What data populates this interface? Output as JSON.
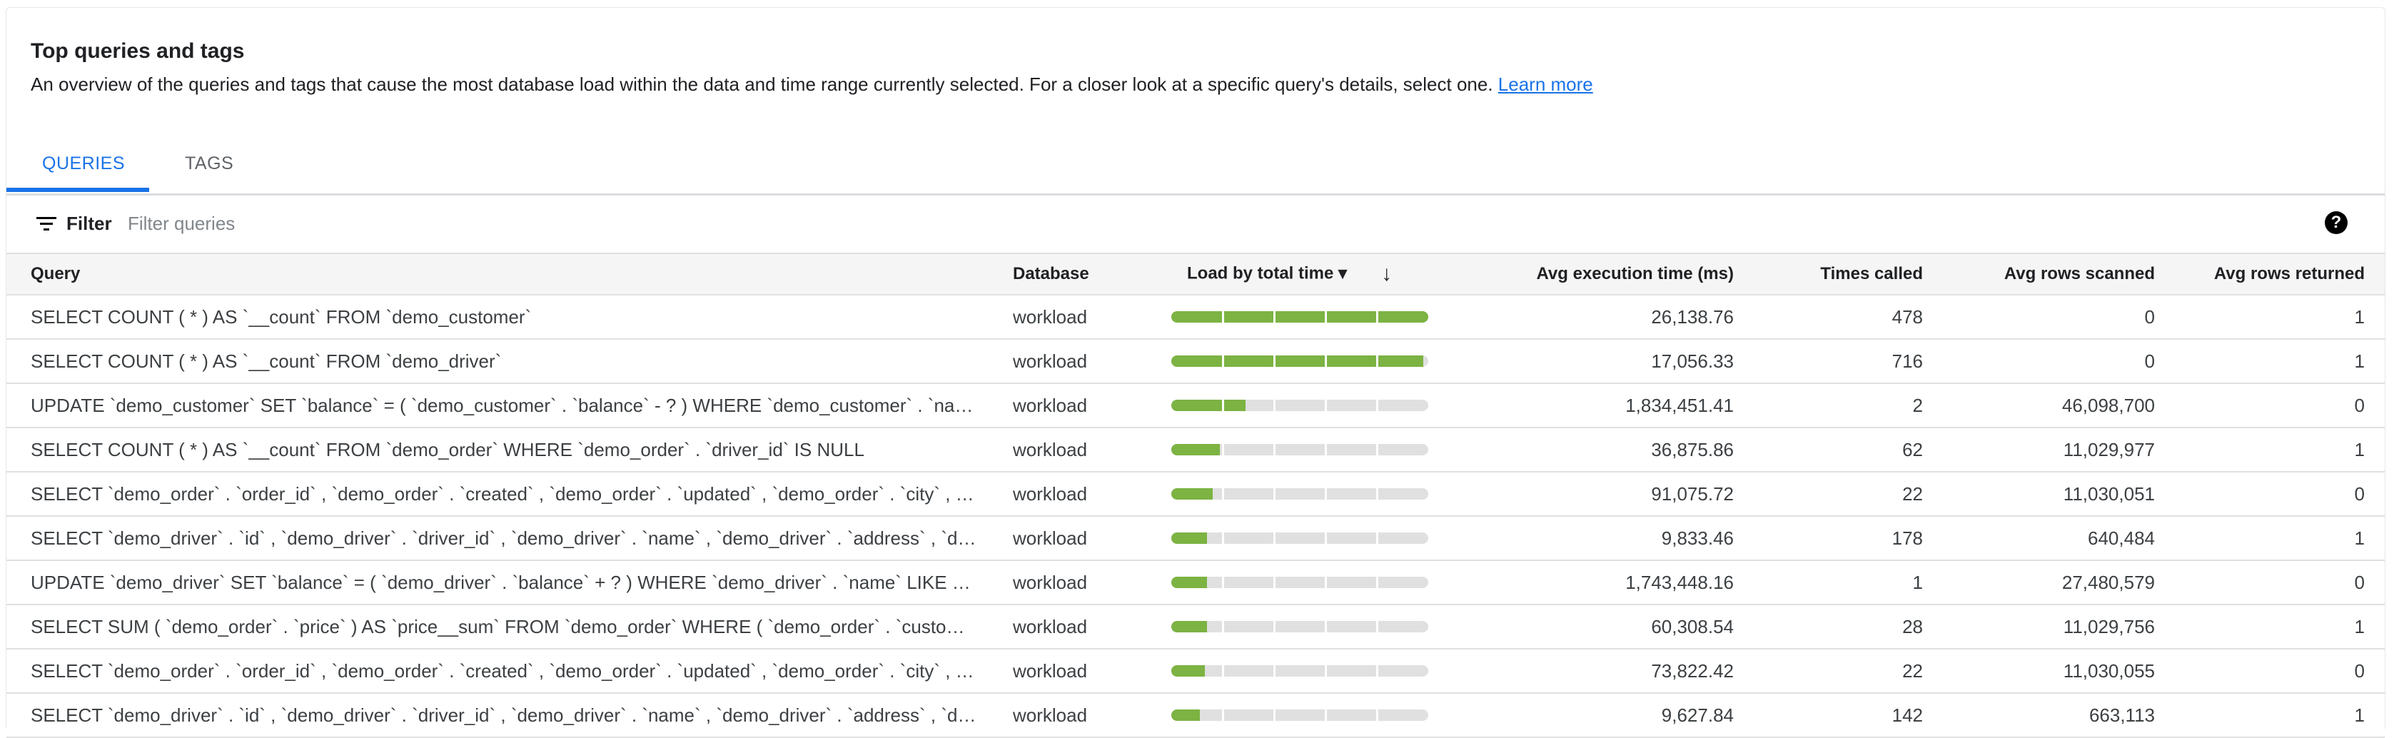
{
  "header": {
    "title": "Top queries and tags",
    "description": "An overview of the queries and tags that cause the most database load within the data and time range currently selected. For a closer look at a specific query's details, select one.",
    "learn_more": "Learn more"
  },
  "tabs": [
    {
      "label": "QUERIES",
      "active": true
    },
    {
      "label": "TAGS",
      "active": false
    }
  ],
  "filter": {
    "label": "Filter",
    "placeholder": "Filter queries",
    "icon": "filter-list-icon",
    "help_icon": "help-icon"
  },
  "colors": {
    "accent": "#1a73e8",
    "bar_fill": "#7cb342",
    "bar_track": "#e0e0e0"
  },
  "table": {
    "columns": [
      "Query",
      "Database",
      "Load by total time ▾",
      "Avg execution time (ms)",
      "Times called",
      "Avg rows scanned",
      "Avg rows returned"
    ],
    "sort": {
      "column": "Load by total time",
      "direction": "descending"
    },
    "rows": [
      {
        "query": "SELECT COUNT ( * ) AS `__count` FROM `demo_customer`",
        "database": "workload",
        "load": 1.0,
        "avg_exec": "26,138.76",
        "times": "478",
        "scanned": "0",
        "returned": "1"
      },
      {
        "query": "SELECT COUNT ( * ) AS `__count` FROM `demo_driver`",
        "database": "workload",
        "load": 0.98,
        "avg_exec": "17,056.33",
        "times": "716",
        "scanned": "0",
        "returned": "1"
      },
      {
        "query": "UPDATE `demo_customer` SET `balance` = ( `demo_customer` . `balance` - ? ) WHERE `demo_customer` . `name` LIKE BINARY ?",
        "database": "workload",
        "load": 0.29,
        "avg_exec": "1,834,451.41",
        "times": "2",
        "scanned": "46,098,700",
        "returned": "0"
      },
      {
        "query": "SELECT COUNT ( * ) AS `__count` FROM `demo_order` WHERE `demo_order` . `driver_id` IS NULL",
        "database": "workload",
        "load": 0.19,
        "avg_exec": "36,875.86",
        "times": "62",
        "scanned": "11,029,977",
        "returned": "1"
      },
      {
        "query": "SELECT `demo_order` . `order_id` , `demo_order` . `created` , `demo_order` . `updated` , `demo_order` . `city` , `demo_order` . `driver_id`",
        "database": "workload",
        "load": 0.16,
        "avg_exec": "91,075.72",
        "times": "22",
        "scanned": "11,030,051",
        "returned": "0"
      },
      {
        "query": "SELECT `demo_driver` . `id` , `demo_driver` . `driver_id` , `demo_driver` . `name` , `demo_driver` . `address` , `demo_driver` . `city`",
        "database": "workload",
        "load": 0.14,
        "avg_exec": "9,833.46",
        "times": "178",
        "scanned": "640,484",
        "returned": "1"
      },
      {
        "query": "UPDATE `demo_driver` SET `balance` = ( `demo_driver` . `balance` + ? ) WHERE `demo_driver` . `name` LIKE BINARY ?",
        "database": "workload",
        "load": 0.14,
        "avg_exec": "1,743,448.16",
        "times": "1",
        "scanned": "27,480,579",
        "returned": "0"
      },
      {
        "query": "SELECT SUM ( `demo_order` . `price` ) AS `price__sum` FROM `demo_order` WHERE ( `demo_order` . `customer_id` = ? )",
        "database": "workload",
        "load": 0.14,
        "avg_exec": "60,308.54",
        "times": "28",
        "scanned": "11,029,756",
        "returned": "1"
      },
      {
        "query": "SELECT `demo_order` . `order_id` , `demo_order` . `created` , `demo_order` . `updated` , `demo_order` . `city` , `demo_order` . `driver_id`",
        "database": "workload",
        "load": 0.13,
        "avg_exec": "73,822.42",
        "times": "22",
        "scanned": "11,030,055",
        "returned": "0"
      },
      {
        "query": "SELECT `demo_driver` . `id` , `demo_driver` . `driver_id` , `demo_driver` . `name` , `demo_driver` . `address` , `demo_driver` . `city`",
        "database": "workload",
        "load": 0.11,
        "avg_exec": "9,627.84",
        "times": "142",
        "scanned": "663,113",
        "returned": "1"
      }
    ]
  }
}
